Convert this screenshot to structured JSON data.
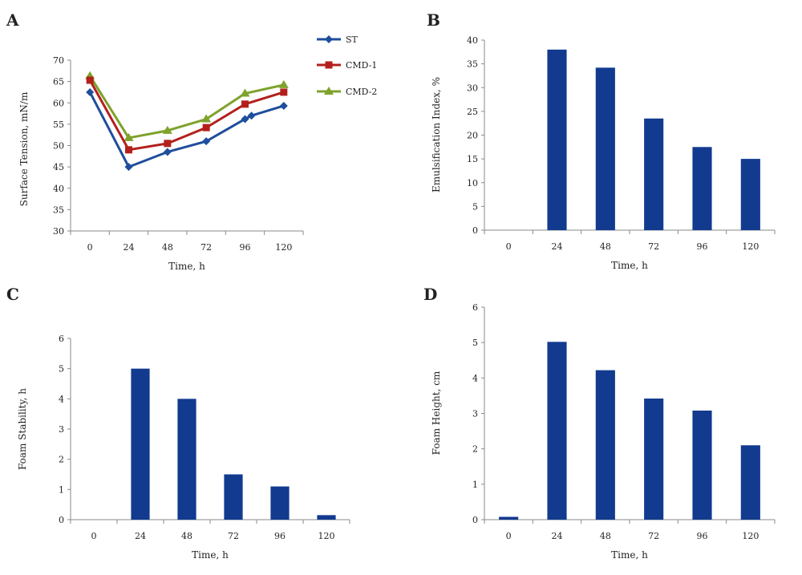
{
  "colors": {
    "ST": "#1f4e9c",
    "CMD-1": "#b3201c",
    "CMD-2": "#7ea22c",
    "bar": "#123b8f",
    "axis": "#8a8a8a"
  },
  "chart_data": [
    {
      "panel": "A",
      "type": "line",
      "x": [
        "0",
        "24",
        "48",
        "72",
        "96",
        "100",
        "120"
      ],
      "x_ticks": [
        "0",
        "24",
        "48",
        "72",
        "96",
        "120"
      ],
      "series": [
        {
          "name": "ST",
          "marker": "diamond",
          "points": [
            [
              0,
              62.5
            ],
            [
              24,
              45
            ],
            [
              48,
              48.5
            ],
            [
              72,
              51
            ],
            [
              96,
              56.2
            ],
            [
              100,
              57
            ],
            [
              120,
              59.3
            ]
          ]
        },
        {
          "name": "CMD-1",
          "marker": "square",
          "points": [
            [
              0,
              65.3
            ],
            [
              24,
              49
            ],
            [
              48,
              50.5
            ],
            [
              72,
              54.2
            ],
            [
              96,
              59.7
            ],
            [
              120,
              62.5
            ]
          ]
        },
        {
          "name": "CMD-2",
          "marker": "triangle",
          "points": [
            [
              0,
              66.3
            ],
            [
              24,
              51.8
            ],
            [
              48,
              53.5
            ],
            [
              72,
              56.2
            ],
            [
              96,
              62.2
            ],
            [
              120,
              64.2
            ]
          ]
        }
      ],
      "xlabel": "Time, h",
      "ylabel": "Surface Tension, mN/m",
      "ylim": [
        30,
        70
      ],
      "yticks": [
        "30",
        "35",
        "40",
        "45",
        "50",
        "55",
        "60",
        "65",
        "70"
      ],
      "legend": "top-right"
    },
    {
      "panel": "B",
      "type": "bar",
      "categories": [
        "0",
        "24",
        "48",
        "72",
        "96",
        "120"
      ],
      "values": [
        0,
        38,
        34.2,
        23.5,
        17.5,
        15
      ],
      "xlabel": "Time, h",
      "ylabel": "Emulsification Index, %",
      "ylim": [
        0,
        40
      ],
      "yticks": [
        "0",
        "5",
        "10",
        "15",
        "20",
        "25",
        "30",
        "35",
        "40"
      ]
    },
    {
      "panel": "C",
      "type": "bar",
      "categories": [
        "0",
        "24",
        "48",
        "72",
        "96",
        "120"
      ],
      "values": [
        0,
        5,
        4,
        1.5,
        1.1,
        0.15
      ],
      "xlabel": "Time, h",
      "ylabel": "Foam Stability, h",
      "ylim": [
        0,
        6
      ],
      "yticks": [
        "0",
        "1",
        "2",
        "3",
        "4",
        "5",
        "6"
      ]
    },
    {
      "panel": "D",
      "type": "bar",
      "categories": [
        "0",
        "24",
        "48",
        "72",
        "96",
        "120"
      ],
      "values": [
        0.08,
        5.02,
        4.22,
        3.42,
        3.08,
        2.1
      ],
      "xlabel": "Time, h",
      "ylabel": "Foam Height, cm",
      "ylim": [
        0,
        6
      ],
      "yticks": [
        "0",
        "1",
        "2",
        "3",
        "4",
        "5",
        "6"
      ]
    }
  ]
}
